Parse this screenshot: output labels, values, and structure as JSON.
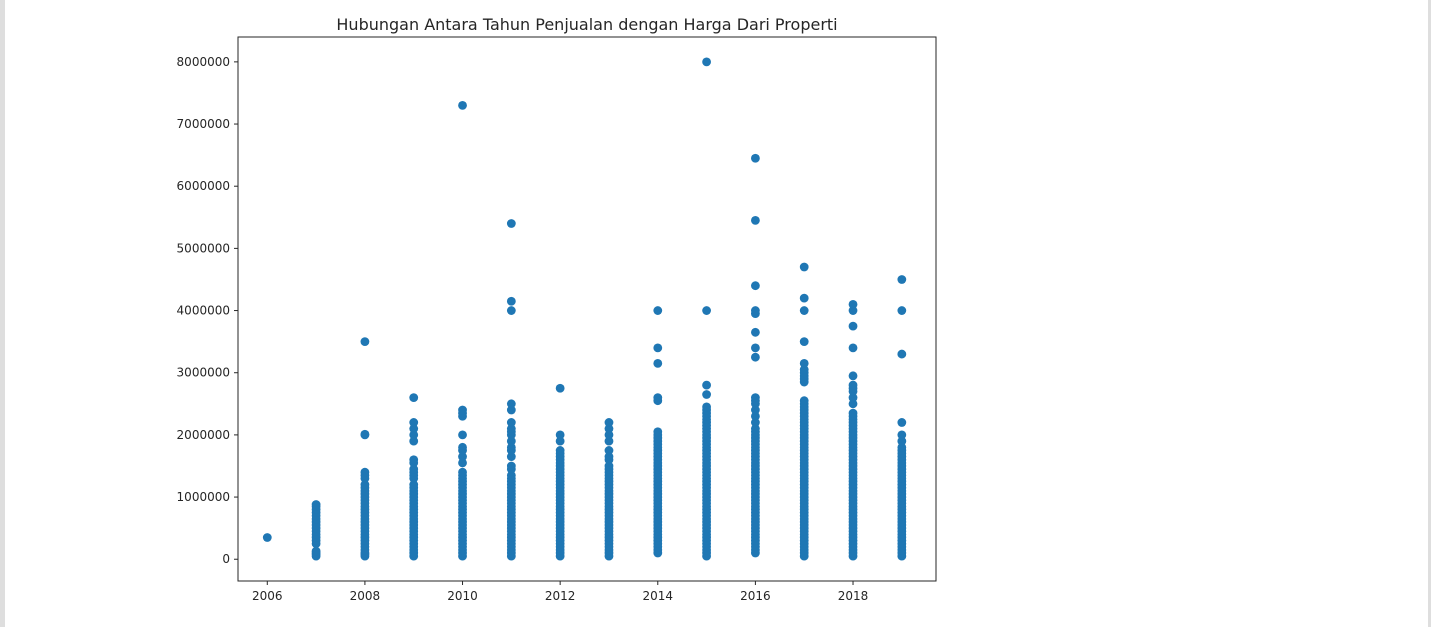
{
  "chart_data": {
    "type": "scatter",
    "title": "Hubungan Antara Tahun Penjualan dengan Harga Dari Properti",
    "xlabel": "",
    "ylabel": "",
    "xlim": [
      2005.4,
      2019.7
    ],
    "ylim": [
      -350000,
      8400000
    ],
    "xticks": [
      2006,
      2008,
      2010,
      2012,
      2014,
      2016,
      2018
    ],
    "yticks": [
      0,
      1000000,
      2000000,
      3000000,
      4000000,
      5000000,
      6000000,
      7000000,
      8000000
    ],
    "xtick_labels": [
      "2006",
      "2008",
      "2010",
      "2012",
      "2014",
      "2016",
      "2018"
    ],
    "ytick_labels": [
      "0",
      "1000000",
      "2000000",
      "3000000",
      "4000000",
      "5000000",
      "6000000",
      "7000000",
      "8000000"
    ],
    "grid": false,
    "marker_color": "#1f77b4",
    "points_by_year": [
      {
        "x": 2006,
        "y": [
          350000
        ]
      },
      {
        "x": 2007,
        "y": [
          50000,
          80000,
          100000,
          130000,
          250000,
          300000,
          350000,
          400000,
          450000,
          500000,
          550000,
          600000,
          650000,
          700000,
          750000,
          800000,
          850000,
          880000
        ]
      },
      {
        "x": 2008,
        "y": [
          50000,
          80000,
          100000,
          150000,
          200000,
          250000,
          300000,
          350000,
          400000,
          450000,
          500000,
          550000,
          600000,
          650000,
          700000,
          750000,
          800000,
          850000,
          900000,
          950000,
          1000000,
          1050000,
          1100000,
          1150000,
          1200000,
          1300000,
          1350000,
          1400000,
          2000000,
          2010000,
          3500000
        ]
      },
      {
        "x": 2009,
        "y": [
          50000,
          100000,
          150000,
          200000,
          250000,
          300000,
          350000,
          400000,
          450000,
          500000,
          550000,
          600000,
          650000,
          700000,
          750000,
          800000,
          850000,
          900000,
          950000,
          1000000,
          1050000,
          1100000,
          1150000,
          1200000,
          1300000,
          1350000,
          1400000,
          1450000,
          1550000,
          1600000,
          1900000,
          2000000,
          2100000,
          2200000,
          2600000
        ]
      },
      {
        "x": 2010,
        "y": [
          50000,
          100000,
          150000,
          200000,
          250000,
          300000,
          350000,
          400000,
          450000,
          500000,
          550000,
          600000,
          650000,
          700000,
          750000,
          800000,
          850000,
          900000,
          950000,
          1000000,
          1050000,
          1100000,
          1150000,
          1200000,
          1250000,
          1300000,
          1350000,
          1400000,
          1550000,
          1650000,
          1750000,
          1800000,
          2000000,
          2300000,
          2350000,
          2400000,
          7300000
        ]
      },
      {
        "x": 2011,
        "y": [
          50000,
          100000,
          150000,
          200000,
          250000,
          300000,
          350000,
          400000,
          450000,
          500000,
          550000,
          600000,
          650000,
          700000,
          750000,
          800000,
          850000,
          900000,
          950000,
          1000000,
          1050000,
          1100000,
          1150000,
          1200000,
          1250000,
          1300000,
          1350000,
          1450000,
          1500000,
          1650000,
          1750000,
          1800000,
          1900000,
          2000000,
          2050000,
          2100000,
          2200000,
          2400000,
          2500000,
          4000000,
          4150000,
          5400000
        ]
      },
      {
        "x": 2012,
        "y": [
          50000,
          100000,
          150000,
          200000,
          250000,
          300000,
          350000,
          400000,
          450000,
          500000,
          550000,
          600000,
          650000,
          700000,
          750000,
          800000,
          850000,
          900000,
          950000,
          1000000,
          1050000,
          1100000,
          1150000,
          1200000,
          1250000,
          1300000,
          1350000,
          1400000,
          1450000,
          1500000,
          1550000,
          1600000,
          1650000,
          1700000,
          1750000,
          1900000,
          2000000,
          2750000
        ]
      },
      {
        "x": 2013,
        "y": [
          50000,
          100000,
          150000,
          200000,
          250000,
          300000,
          350000,
          400000,
          450000,
          500000,
          550000,
          600000,
          650000,
          700000,
          750000,
          800000,
          850000,
          900000,
          950000,
          1000000,
          1050000,
          1100000,
          1150000,
          1200000,
          1250000,
          1300000,
          1350000,
          1400000,
          1450000,
          1500000,
          1600000,
          1650000,
          1750000,
          1900000,
          2000000,
          2100000,
          2200000
        ]
      },
      {
        "x": 2014,
        "y": [
          100000,
          150000,
          200000,
          250000,
          300000,
          350000,
          400000,
          450000,
          500000,
          550000,
          600000,
          650000,
          700000,
          750000,
          800000,
          850000,
          900000,
          950000,
          1000000,
          1050000,
          1100000,
          1150000,
          1200000,
          1250000,
          1300000,
          1350000,
          1400000,
          1450000,
          1500000,
          1550000,
          1600000,
          1650000,
          1700000,
          1750000,
          1800000,
          1850000,
          1900000,
          1950000,
          2000000,
          2050000,
          2550000,
          2600000,
          3150000,
          3400000,
          4000000
        ]
      },
      {
        "x": 2015,
        "y": [
          50000,
          100000,
          150000,
          200000,
          250000,
          300000,
          350000,
          400000,
          450000,
          500000,
          550000,
          600000,
          650000,
          700000,
          750000,
          800000,
          850000,
          900000,
          950000,
          1000000,
          1050000,
          1100000,
          1150000,
          1200000,
          1250000,
          1300000,
          1350000,
          1400000,
          1450000,
          1500000,
          1550000,
          1600000,
          1650000,
          1700000,
          1750000,
          1800000,
          1850000,
          1900000,
          1950000,
          2000000,
          2050000,
          2100000,
          2150000,
          2200000,
          2250000,
          2300000,
          2350000,
          2400000,
          2450000,
          2650000,
          2800000,
          4000000,
          8000000
        ]
      },
      {
        "x": 2016,
        "y": [
          100000,
          150000,
          200000,
          250000,
          300000,
          350000,
          400000,
          450000,
          500000,
          550000,
          600000,
          650000,
          700000,
          750000,
          800000,
          850000,
          900000,
          950000,
          1000000,
          1050000,
          1100000,
          1150000,
          1200000,
          1250000,
          1300000,
          1350000,
          1400000,
          1450000,
          1500000,
          1550000,
          1600000,
          1650000,
          1700000,
          1750000,
          1800000,
          1850000,
          1900000,
          1950000,
          2000000,
          2050000,
          2100000,
          2200000,
          2300000,
          2400000,
          2500000,
          2550000,
          2600000,
          3250000,
          3400000,
          3650000,
          3950000,
          4000000,
          4400000,
          5450000,
          6450000
        ]
      },
      {
        "x": 2017,
        "y": [
          50000,
          100000,
          150000,
          200000,
          250000,
          300000,
          350000,
          400000,
          450000,
          500000,
          550000,
          600000,
          650000,
          700000,
          750000,
          800000,
          850000,
          900000,
          950000,
          1000000,
          1050000,
          1100000,
          1150000,
          1200000,
          1250000,
          1300000,
          1350000,
          1400000,
          1450000,
          1500000,
          1550000,
          1600000,
          1650000,
          1700000,
          1750000,
          1800000,
          1850000,
          1900000,
          1950000,
          2000000,
          2050000,
          2100000,
          2150000,
          2200000,
          2250000,
          2300000,
          2350000,
          2400000,
          2450000,
          2500000,
          2550000,
          2850000,
          2900000,
          2950000,
          3000000,
          3050000,
          3150000,
          3500000,
          4000000,
          4200000,
          4700000
        ]
      },
      {
        "x": 2018,
        "y": [
          50000,
          100000,
          150000,
          200000,
          250000,
          300000,
          350000,
          400000,
          450000,
          500000,
          550000,
          600000,
          650000,
          700000,
          750000,
          800000,
          850000,
          900000,
          950000,
          1000000,
          1050000,
          1100000,
          1150000,
          1200000,
          1250000,
          1300000,
          1350000,
          1400000,
          1450000,
          1500000,
          1550000,
          1600000,
          1650000,
          1700000,
          1750000,
          1800000,
          1850000,
          1900000,
          1950000,
          2000000,
          2050000,
          2100000,
          2150000,
          2200000,
          2250000,
          2300000,
          2350000,
          2500000,
          2600000,
          2700000,
          2750000,
          2800000,
          2950000,
          3400000,
          3750000,
          4000000,
          4100000
        ]
      },
      {
        "x": 2019,
        "y": [
          50000,
          100000,
          150000,
          200000,
          250000,
          300000,
          350000,
          400000,
          450000,
          500000,
          550000,
          600000,
          650000,
          700000,
          750000,
          800000,
          850000,
          900000,
          950000,
          1000000,
          1050000,
          1100000,
          1150000,
          1200000,
          1250000,
          1300000,
          1350000,
          1400000,
          1450000,
          1500000,
          1550000,
          1600000,
          1650000,
          1700000,
          1750000,
          1800000,
          1900000,
          2000000,
          2200000,
          3300000,
          4000000,
          4500000
        ]
      }
    ]
  }
}
